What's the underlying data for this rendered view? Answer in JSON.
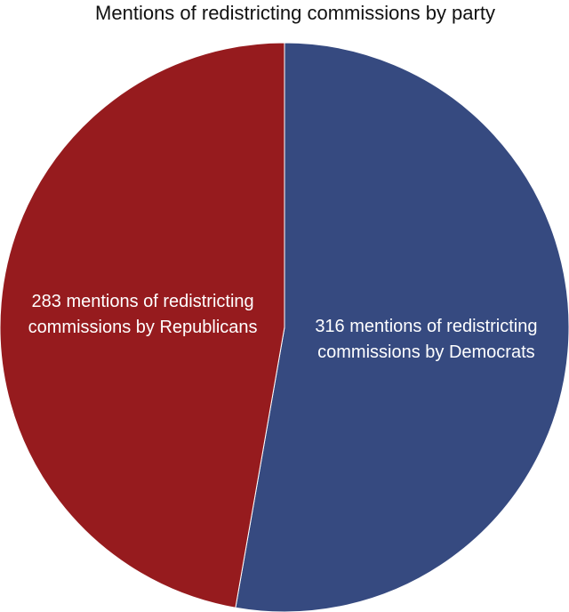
{
  "chart_data": {
    "type": "pie",
    "title": "Mentions of redistricting commissions by party",
    "values": [
      316,
      283
    ],
    "value_labels": [
      "316 mentions of redistricting commissions by Democrats",
      "283 mentions of redistricting commissions by Republicans"
    ],
    "colors": [
      "#364a80",
      "#961b1e"
    ]
  }
}
